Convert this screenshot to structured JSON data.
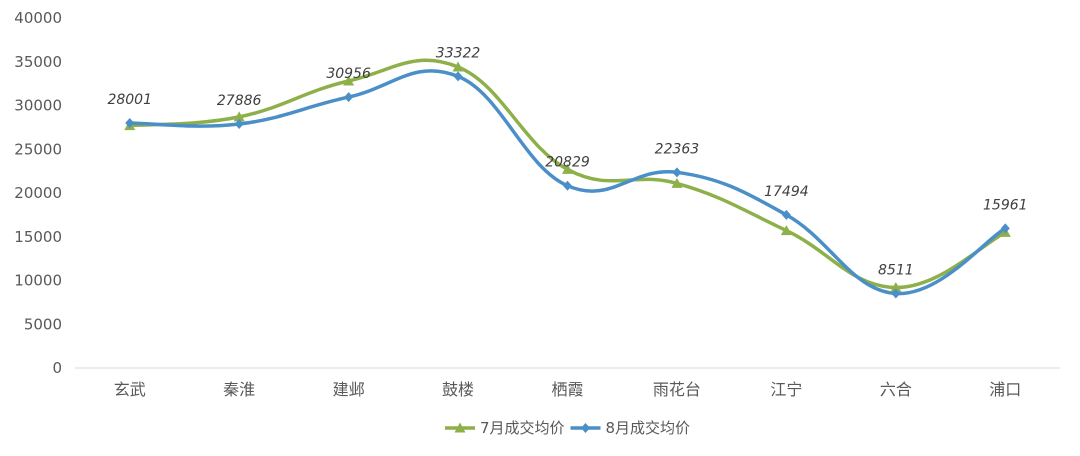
{
  "chart_data": {
    "type": "line",
    "smooth": true,
    "categories": [
      "玄武",
      "秦淮",
      "建邺",
      "鼓楼",
      "栖霞",
      "雨花台",
      "江宁",
      "六合",
      "浦口"
    ],
    "ylim": [
      0,
      40000
    ],
    "yticks": [
      0,
      5000,
      10000,
      15000,
      20000,
      25000,
      30000,
      35000,
      40000
    ],
    "grid": false,
    "legend_position": "bottom",
    "series": [
      {
        "name": "7月成交均价",
        "color": "#8db04a",
        "marker": "triangle",
        "values": [
          27700,
          28700,
          32800,
          34400,
          22700,
          21100,
          15700,
          9200,
          15500
        ],
        "show_labels": false
      },
      {
        "name": "8月成交均价",
        "color": "#4a8fc7",
        "marker": "diamond",
        "values": [
          28001,
          27886,
          30956,
          33322,
          20829,
          22363,
          17494,
          8511,
          15961
        ],
        "show_labels": true
      }
    ]
  }
}
